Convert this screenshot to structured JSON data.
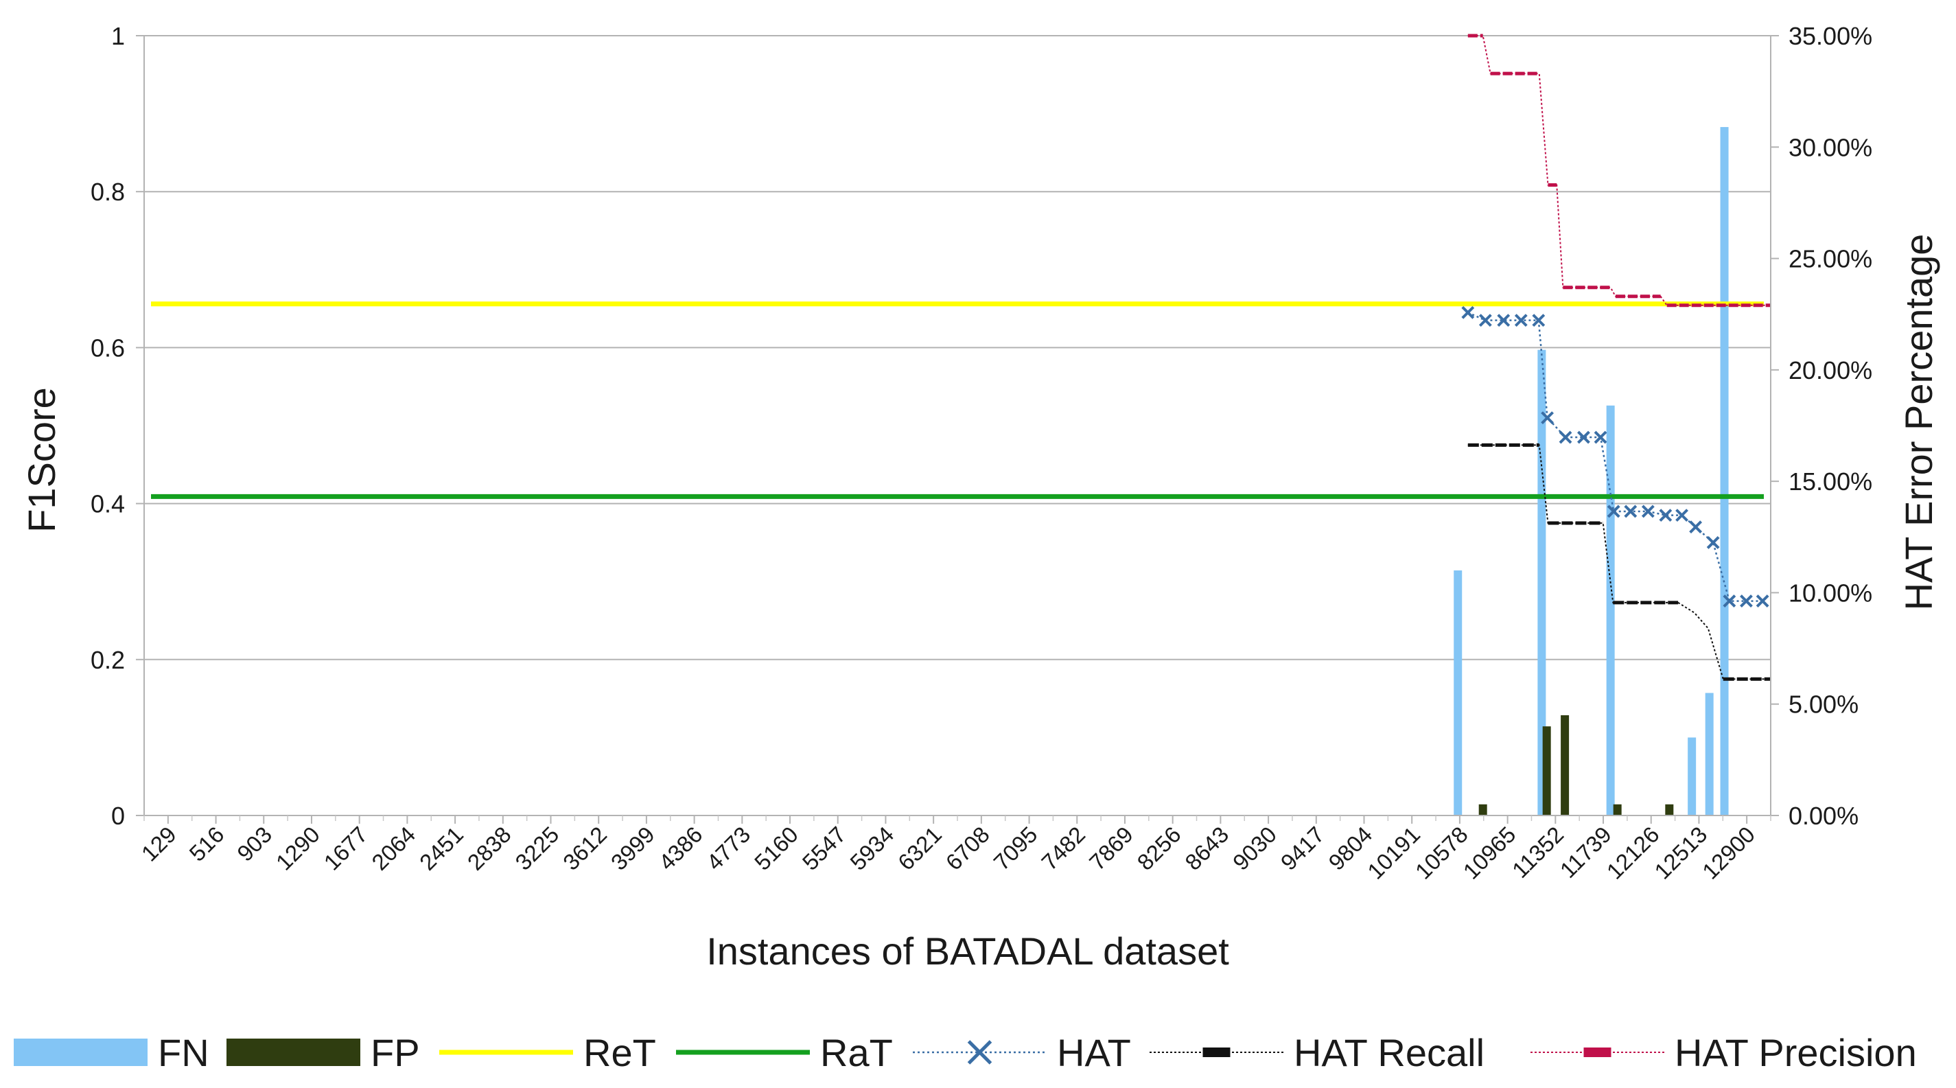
{
  "chart_data": {
    "type": "bar+line",
    "xlabel": "Instances of BATADAL dataset",
    "ylabel_left": "F1Score",
    "ylabel_right": "HAT Error Percentage",
    "ylim_left": [
      0,
      1
    ],
    "ylim_right": [
      0,
      0.35
    ],
    "grid": "horizontal",
    "legend_position": "bottom",
    "x_tick_labels": [
      "129",
      "516",
      "903",
      "1290",
      "1677",
      "2064",
      "2451",
      "2838",
      "3225",
      "3612",
      "3999",
      "4386",
      "4773",
      "5160",
      "5547",
      "5934",
      "6321",
      "6708",
      "7095",
      "7482",
      "7869",
      "8256",
      "8643",
      "9030",
      "9417",
      "9804",
      "10191",
      "10578",
      "10965",
      "11352",
      "11739",
      "12126",
      "12513",
      "12900"
    ],
    "y_tick_labels_left": [
      "0",
      "0.2",
      "0.4",
      "0.6",
      "0.8",
      "1"
    ],
    "y_tick_labels_right": [
      "0.00%",
      "5.00%",
      "10.00%",
      "15.00%",
      "20.00%",
      "25.00%",
      "30.00%",
      "35.00%"
    ],
    "colors": {
      "FN": "#83c5f5",
      "FP": "#2f3d10",
      "ReT": "#ffff00",
      "RaT": "#14a01f",
      "HAT": "#3a6ea5",
      "HAT Recall": "#111111",
      "HAT Precision": "#c0104a"
    },
    "series": [
      {
        "name": "FN",
        "kind": "bar",
        "axis": "right",
        "points": [
          [
            10500,
            0.11
          ],
          [
            11170,
            0.209
          ],
          [
            11720,
            0.184
          ],
          [
            12370,
            0.035
          ],
          [
            12510,
            0.055
          ],
          [
            12630,
            0.309
          ]
        ]
      },
      {
        "name": "FP",
        "kind": "bar",
        "axis": "right",
        "points": [
          [
            10700,
            0.005
          ],
          [
            11210,
            0.04
          ],
          [
            11355,
            0.045
          ],
          [
            11775,
            0.005
          ],
          [
            12190,
            0.005
          ]
        ]
      },
      {
        "name": "ReT",
        "kind": "hline",
        "axis": "left",
        "value": 0.656
      },
      {
        "name": "RaT",
        "kind": "hline",
        "axis": "left",
        "value": 0.409
      },
      {
        "name": "HAT",
        "kind": "line-marker",
        "axis": "left",
        "x": [
          10580,
          10720,
          10865,
          11005,
          11145,
          11215,
          11360,
          11505,
          11640,
          11745,
          11880,
          12020,
          12160,
          12290,
          12400,
          12540,
          12670,
          12805,
          12935
        ],
        "values": [
          0.645,
          0.635,
          0.635,
          0.635,
          0.635,
          0.51,
          0.485,
          0.485,
          0.485,
          0.39,
          0.39,
          0.39,
          0.385,
          0.385,
          0.37,
          0.35,
          0.275,
          0.275,
          0.275
        ]
      },
      {
        "name": "HAT Recall",
        "kind": "step",
        "axis": "left",
        "x": [
          10580,
          11150,
          11220,
          11660,
          11740,
          12260,
          12390,
          12500,
          12620,
          13000
        ],
        "values": [
          0.475,
          0.475,
          0.375,
          0.375,
          0.273,
          0.273,
          0.26,
          0.24,
          0.175,
          0.175
        ]
      },
      {
        "name": "HAT Precision",
        "kind": "step",
        "axis": "right",
        "x": [
          10580,
          10700,
          10760,
          11150,
          11220,
          11290,
          11340,
          11720,
          11760,
          12120,
          12170,
          13000
        ],
        "values": [
          0.35,
          0.35,
          0.333,
          0.333,
          0.283,
          0.283,
          0.237,
          0.237,
          0.233,
          0.233,
          0.229,
          0.229
        ]
      }
    ],
    "legend": [
      "FN",
      "FP",
      "ReT",
      "RaT",
      "HAT",
      "HAT Recall",
      "HAT Precision"
    ]
  }
}
